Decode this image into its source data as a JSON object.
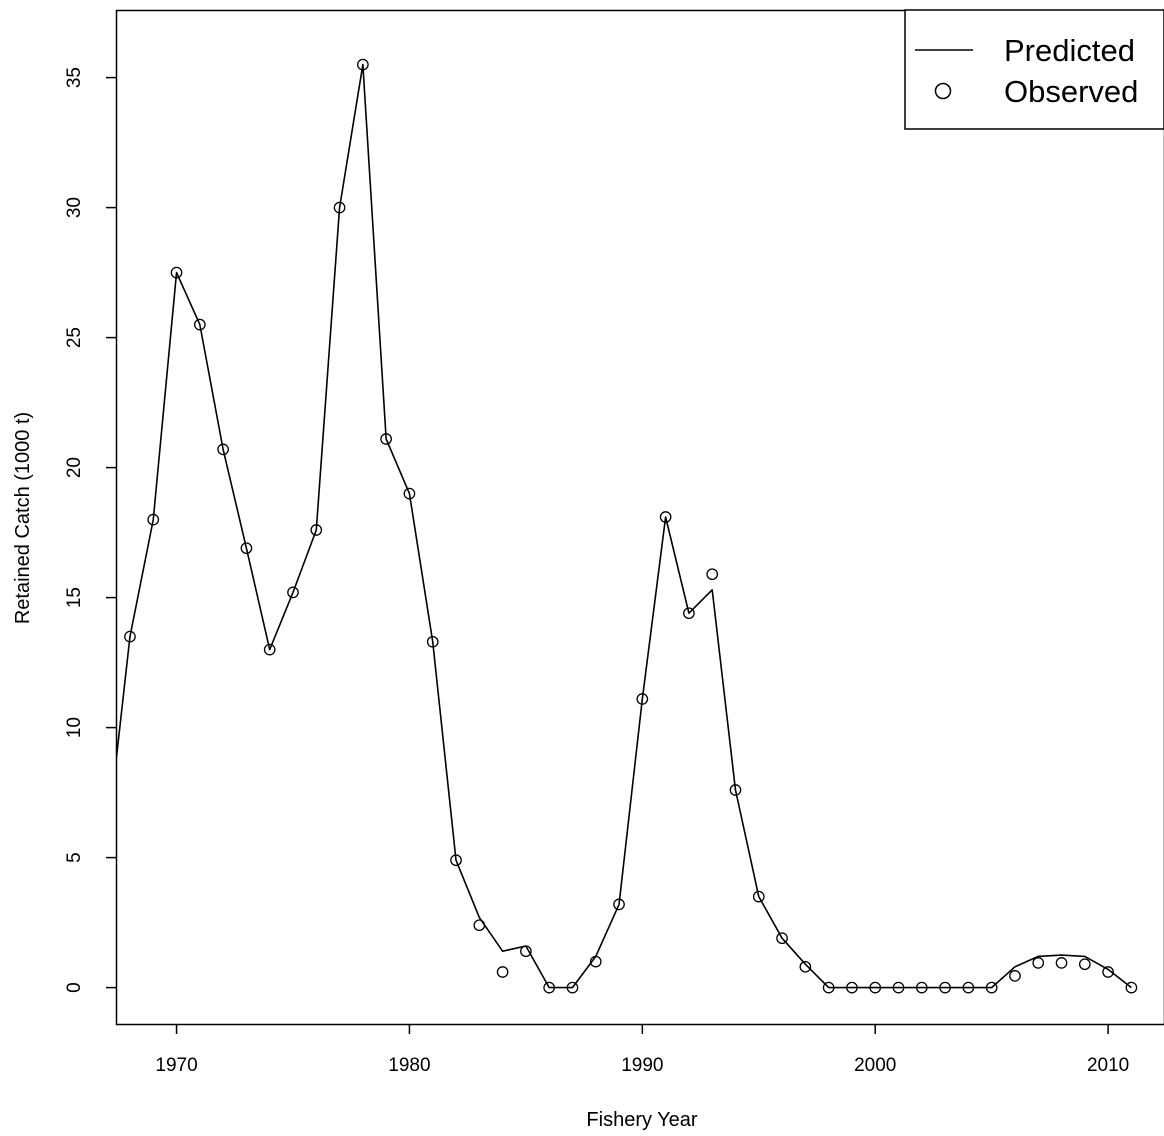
{
  "chart_data": {
    "type": "line",
    "xlabel": "Fishery Year",
    "ylabel": "Retained Catch (1000 t)",
    "xlim": [
      1967.4,
      2012.4
    ],
    "ylim": [
      -1.4,
      37.6
    ],
    "x_ticks": [
      1970,
      1980,
      1990,
      2000,
      2010
    ],
    "y_ticks": [
      0,
      5,
      10,
      15,
      20,
      25,
      30,
      35
    ],
    "grid": false,
    "legend_position": "top-right",
    "series": [
      {
        "name": "Predicted",
        "style": "line",
        "x": [
          1967,
          1968,
          1969,
          1970,
          1971,
          1972,
          1973,
          1974,
          1975,
          1976,
          1977,
          1978,
          1979,
          1980,
          1981,
          1982,
          1983,
          1984,
          1985,
          1986,
          1987,
          1988,
          1989,
          1990,
          1991,
          1992,
          1993,
          1994,
          1995,
          1996,
          1997,
          1998,
          1999,
          2000,
          2001,
          2002,
          2003,
          2004,
          2005,
          2006,
          2007,
          2008,
          2009,
          2010,
          2011
        ],
        "values": [
          5.5,
          13.5,
          18.0,
          27.5,
          25.5,
          20.7,
          16.9,
          13.0,
          15.2,
          17.6,
          30.0,
          35.5,
          21.1,
          19.0,
          13.3,
          4.9,
          2.7,
          1.4,
          1.6,
          0.0,
          0.0,
          1.2,
          3.2,
          11.1,
          18.1,
          14.4,
          15.3,
          7.6,
          3.5,
          1.9,
          0.9,
          0.0,
          0.0,
          0.0,
          0.0,
          0.0,
          0.0,
          0.0,
          0.0,
          0.8,
          1.2,
          1.25,
          1.2,
          0.7,
          0.0
        ]
      },
      {
        "name": "Observed",
        "style": "points",
        "x": [
          1968,
          1969,
          1970,
          1971,
          1972,
          1973,
          1974,
          1975,
          1976,
          1977,
          1978,
          1979,
          1980,
          1981,
          1982,
          1983,
          1984,
          1985,
          1986,
          1987,
          1988,
          1989,
          1990,
          1991,
          1992,
          1993,
          1994,
          1995,
          1996,
          1997,
          1998,
          1999,
          2000,
          2001,
          2002,
          2003,
          2004,
          2005,
          2006,
          2007,
          2008,
          2009,
          2010,
          2011
        ],
        "values": [
          13.5,
          18.0,
          27.5,
          25.5,
          20.7,
          16.9,
          13.0,
          15.2,
          17.6,
          30.0,
          35.5,
          21.1,
          19.0,
          13.3,
          4.9,
          2.4,
          0.6,
          1.4,
          0.0,
          0.0,
          1.0,
          3.2,
          11.1,
          18.1,
          14.4,
          15.9,
          7.6,
          3.5,
          1.9,
          0.8,
          0.0,
          0.0,
          0.0,
          0.0,
          0.0,
          0.0,
          0.0,
          0.0,
          0.45,
          0.95,
          0.95,
          0.9,
          0.6,
          0.0
        ]
      }
    ]
  }
}
